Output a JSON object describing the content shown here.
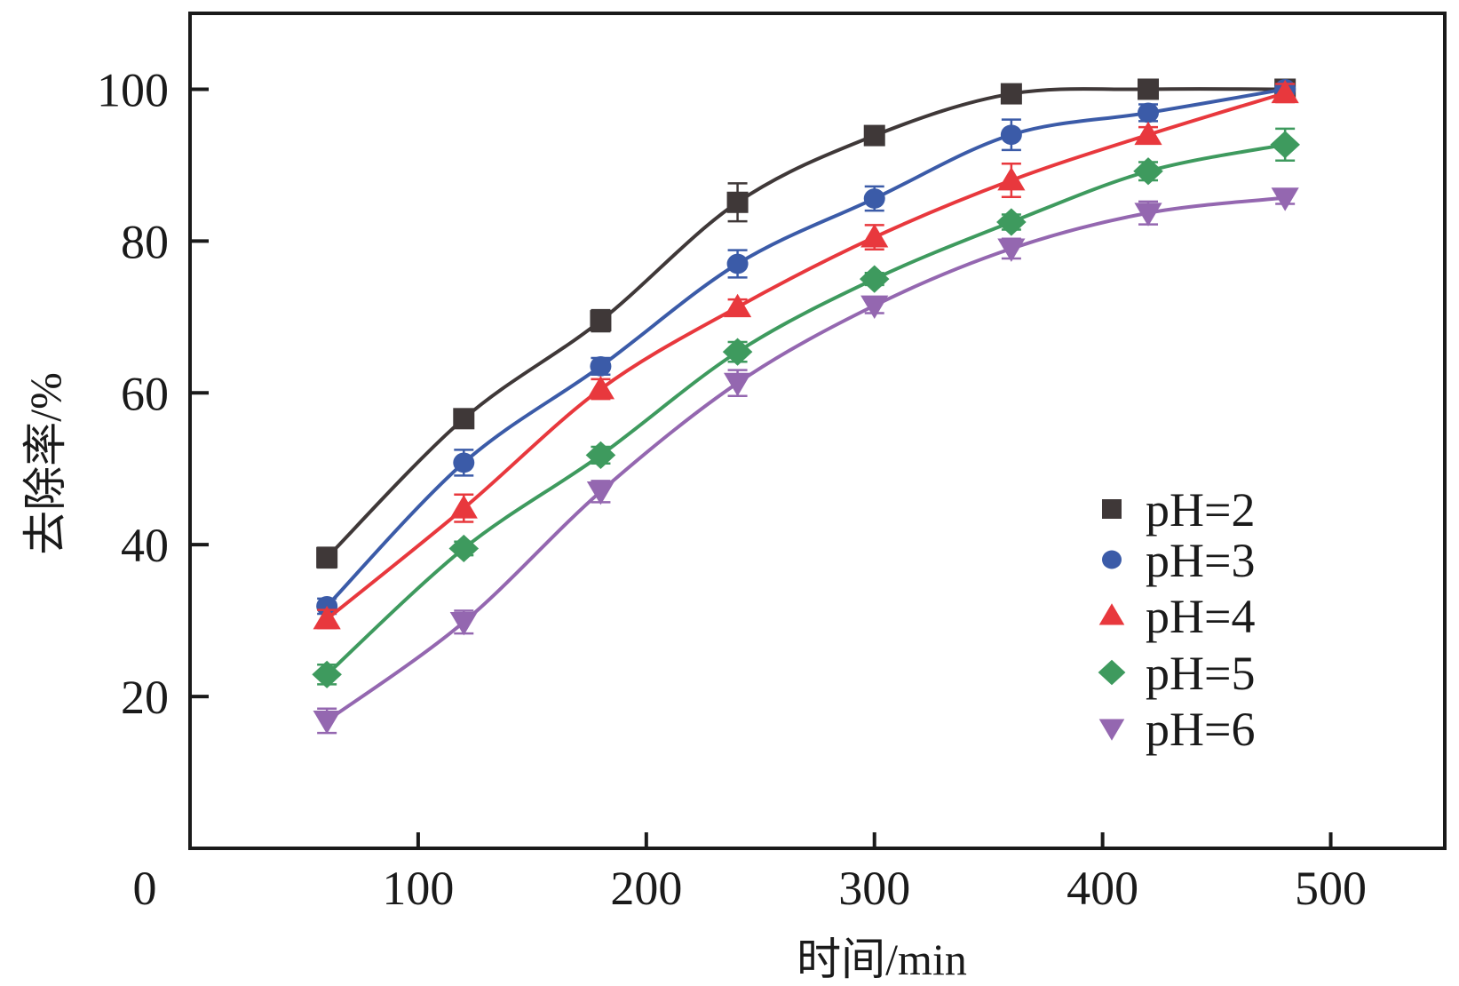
{
  "chart_data": {
    "type": "line",
    "title": "",
    "xlabel": "时间/min",
    "ylabel": "去除率/%",
    "xlim": [
      0,
      550
    ],
    "ylim": [
      0,
      110
    ],
    "xticks": [
      0,
      100,
      200,
      300,
      400,
      500
    ],
    "xtick_labels": [
      "0",
      "100",
      "200",
      "300",
      "400",
      "500"
    ],
    "yticks": [
      20,
      40,
      60,
      80,
      100
    ],
    "ytick_labels": [
      "20",
      "40",
      "60",
      "80",
      "100"
    ],
    "grid": false,
    "legend_position": "lower-right",
    "x": [
      60,
      120,
      180,
      240,
      300,
      360,
      420,
      480
    ],
    "series": [
      {
        "name": "pH=2",
        "marker": "square",
        "color": "#3f3838",
        "values": [
          38.3,
          56.6,
          69.5,
          85.1,
          93.9,
          99.4,
          100,
          100
        ],
        "errors": [
          1.3,
          1.0,
          1.4,
          2.5,
          1.0,
          0.6,
          0.4,
          0.5
        ]
      },
      {
        "name": "pH=3",
        "marker": "circle",
        "color": "#3b5ba8",
        "values": [
          31.9,
          50.8,
          63.5,
          77.0,
          85.6,
          94.0,
          96.9,
          100
        ],
        "errors": [
          1.0,
          1.7,
          1.1,
          1.8,
          1.6,
          2.0,
          1.1,
          0.6
        ]
      },
      {
        "name": "pH=4",
        "marker": "triangle-up",
        "color": "#e8383d",
        "values": [
          30.2,
          44.8,
          60.5,
          71.3,
          80.5,
          88.0,
          94.0,
          99.5
        ],
        "errors": [
          1.2,
          1.8,
          1.3,
          1.0,
          1.6,
          2.2,
          1.0,
          1.2
        ]
      },
      {
        "name": "pH=5",
        "marker": "diamond",
        "color": "#3e9a5e",
        "values": [
          22.9,
          39.5,
          51.8,
          65.4,
          75.0,
          82.5,
          89.2,
          92.7
        ],
        "errors": [
          1.3,
          0.9,
          1.1,
          1.3,
          0.8,
          1.0,
          1.2,
          2.1
        ]
      },
      {
        "name": "pH=6",
        "marker": "triangle-down",
        "color": "#9467b0",
        "values": [
          16.8,
          29.8,
          47.0,
          61.3,
          71.5,
          79.0,
          83.7,
          85.7
        ],
        "errors": [
          1.6,
          1.5,
          1.4,
          1.7,
          1.0,
          1.3,
          1.5,
          0.8
        ]
      }
    ]
  }
}
